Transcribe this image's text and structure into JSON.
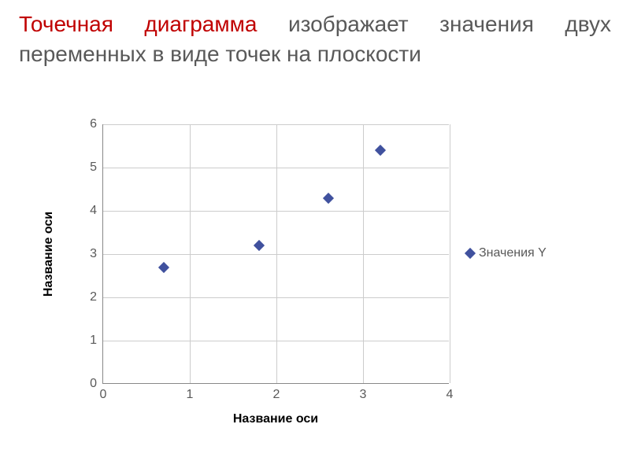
{
  "heading": {
    "highlight": "Точечная диаграмма",
    "rest": " изображает значения двух переменных в виде точек на плоскости",
    "highlight_color": "#c00000",
    "text_color": "#595959",
    "fontsize": 28
  },
  "chart": {
    "type": "scatter",
    "xlabel": "Название оси",
    "ylabel": "Название оси",
    "label_fontsize": 16,
    "label_fontweight": "bold",
    "tick_fontsize": 16,
    "tick_color": "#595959",
    "xlim": [
      0,
      4
    ],
    "ylim": [
      0,
      6
    ],
    "xticks": [
      0,
      1,
      2,
      3,
      4
    ],
    "yticks": [
      0,
      1,
      2,
      3,
      4,
      5,
      6
    ],
    "grid_color": "#cccccc",
    "axis_color": "#888888",
    "background_color": "#ffffff",
    "marker_style": "diamond",
    "marker_size": 10,
    "marker_color": "#40519e",
    "series": {
      "name": "Значения Y",
      "x": [
        0.7,
        1.8,
        2.6,
        3.2
      ],
      "y": [
        2.7,
        3.2,
        4.3,
        5.4
      ]
    },
    "legend": {
      "position": "right",
      "label": "Значения Y",
      "fontsize": 16
    }
  }
}
